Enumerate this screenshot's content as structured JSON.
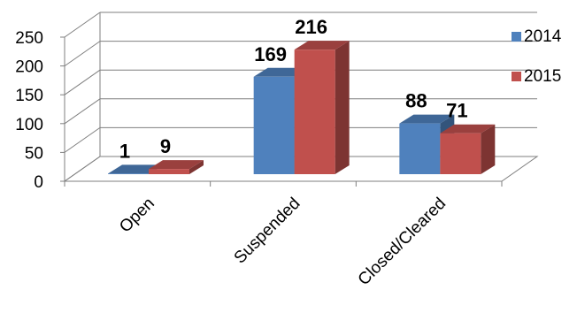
{
  "chart_data": {
    "type": "bar",
    "categories": [
      "Open",
      "Suspended",
      "Closed/Cleared"
    ],
    "series": [
      {
        "name": "2014",
        "values": [
          1,
          169,
          88
        ],
        "color": "#4F81BD"
      },
      {
        "name": "2015",
        "values": [
          9,
          216,
          71
        ],
        "color": "#C0504D"
      }
    ],
    "ylim": [
      0,
      250
    ],
    "yticks": [
      0,
      50,
      100,
      150,
      200,
      250
    ],
    "grid": true,
    "legend": "right",
    "style": "3d-clustered-column"
  }
}
